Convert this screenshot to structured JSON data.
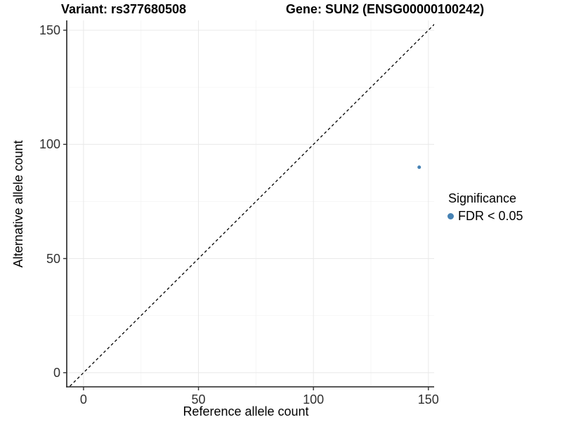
{
  "titles": {
    "variant": "Variant: rs377680508",
    "gene": "Gene: SUN2 (ENSG00000100242)"
  },
  "chart_data": {
    "type": "scatter",
    "title": "Variant: rs377680508 | Gene: SUN2 (ENSG00000100242)",
    "xlabel": "Reference allele count",
    "ylabel": "Alternative allele count",
    "xlim": [
      -7.3,
      152.5
    ],
    "ylim": [
      -6.2,
      154.3
    ],
    "xticks": [
      0,
      50,
      100,
      150
    ],
    "yticks": [
      0,
      50,
      100,
      150
    ],
    "minor_xticks": [
      25,
      75,
      125
    ],
    "minor_yticks": [
      25,
      75,
      125
    ],
    "grid": true,
    "identity_line": {
      "slope": 1,
      "intercept": 0,
      "style": "dashed",
      "color": "#000000"
    },
    "series": [
      {
        "name": "FDR < 0.05",
        "color": "#4682B4",
        "points": [
          {
            "x": 146,
            "y": 90
          }
        ]
      }
    ],
    "legend": {
      "title": "Significance",
      "position": "right",
      "items": [
        {
          "label": "FDR < 0.05",
          "color": "#4682B4"
        }
      ]
    },
    "colors": {
      "axis_line": "#222222",
      "tick_mark": "#333333",
      "major_grid": "#e8e8e8",
      "minor_grid": "#f4f4f4"
    }
  }
}
